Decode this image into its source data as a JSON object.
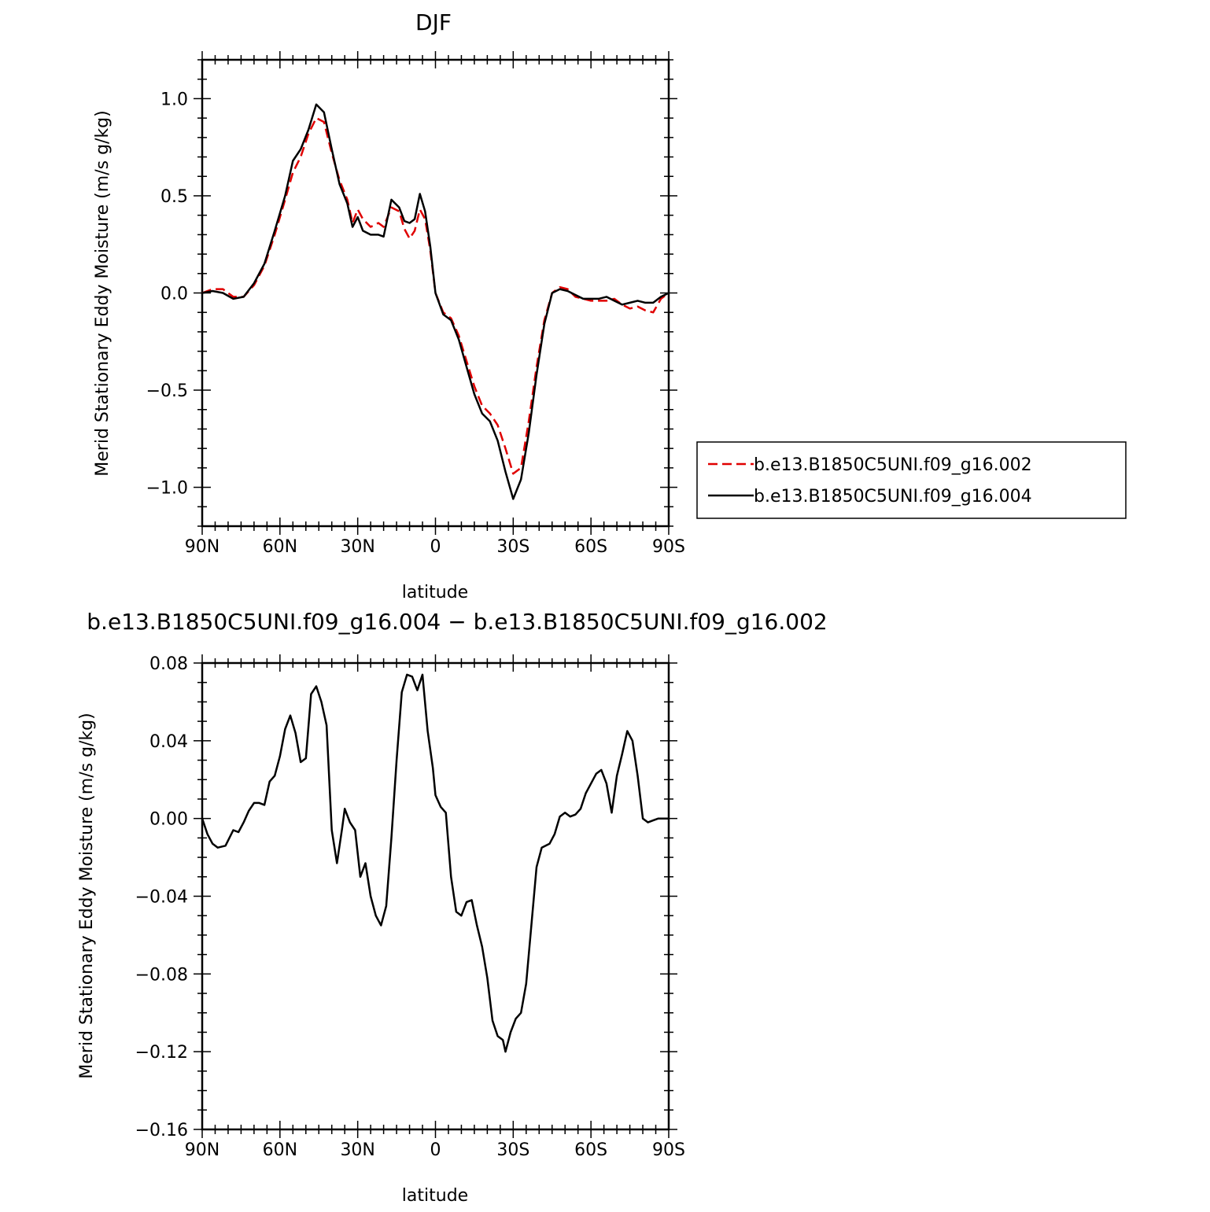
{
  "chart_data": [
    {
      "type": "line",
      "title": "DJF",
      "xlabel": "latitude",
      "ylabel": "Merid Stationary Eddy Moisture (m/s g/kg)",
      "xlim": [
        90,
        -90
      ],
      "ylim": [
        -1.2,
        1.2
      ],
      "x_ticks": [
        {
          "value": 90,
          "label": "90N"
        },
        {
          "value": 60,
          "label": "60N"
        },
        {
          "value": 30,
          "label": "30N"
        },
        {
          "value": 0,
          "label": "0"
        },
        {
          "value": -30,
          "label": "30S"
        },
        {
          "value": -60,
          "label": "60S"
        },
        {
          "value": -90,
          "label": "90S"
        }
      ],
      "y_ticks": [
        {
          "value": 1.0,
          "label": "1.0"
        },
        {
          "value": 0.5,
          "label": "0.5"
        },
        {
          "value": 0.0,
          "label": "0.0"
        },
        {
          "value": -0.5,
          "label": "−0.5"
        },
        {
          "value": -1.0,
          "label": "−1.0"
        }
      ],
      "legend_position": "right",
      "series": [
        {
          "name": "b.e13.B1850C5UNI.f09_g16.002",
          "color": "#e00000",
          "style": "dashed",
          "points": [
            [
              90,
              0.0
            ],
            [
              86,
              0.02
            ],
            [
              82,
              0.02
            ],
            [
              78,
              -0.02
            ],
            [
              74,
              -0.02
            ],
            [
              70,
              0.04
            ],
            [
              66,
              0.14
            ],
            [
              62,
              0.3
            ],
            [
              58,
              0.48
            ],
            [
              55,
              0.62
            ],
            [
              52,
              0.7
            ],
            [
              49,
              0.82
            ],
            [
              46,
              0.9
            ],
            [
              43,
              0.88
            ],
            [
              40,
              0.72
            ],
            [
              37,
              0.58
            ],
            [
              34,
              0.48
            ],
            [
              32,
              0.36
            ],
            [
              30,
              0.43
            ],
            [
              28,
              0.38
            ],
            [
              25,
              0.34
            ],
            [
              22,
              0.36
            ],
            [
              20,
              0.34
            ],
            [
              17,
              0.44
            ],
            [
              14,
              0.42
            ],
            [
              12,
              0.33
            ],
            [
              10,
              0.28
            ],
            [
              8,
              0.32
            ],
            [
              6,
              0.43
            ],
            [
              4,
              0.38
            ],
            [
              2,
              0.22
            ],
            [
              0,
              0.0
            ],
            [
              -3,
              -0.1
            ],
            [
              -6,
              -0.13
            ],
            [
              -9,
              -0.22
            ],
            [
              -12,
              -0.35
            ],
            [
              -15,
              -0.48
            ],
            [
              -18,
              -0.58
            ],
            [
              -21,
              -0.62
            ],
            [
              -24,
              -0.68
            ],
            [
              -27,
              -0.8
            ],
            [
              -30,
              -0.93
            ],
            [
              -33,
              -0.9
            ],
            [
              -36,
              -0.66
            ],
            [
              -39,
              -0.38
            ],
            [
              -42,
              -0.14
            ],
            [
              -45,
              0.0
            ],
            [
              -48,
              0.03
            ],
            [
              -51,
              0.02
            ],
            [
              -54,
              -0.02
            ],
            [
              -57,
              -0.03
            ],
            [
              -60,
              -0.04
            ],
            [
              -63,
              -0.04
            ],
            [
              -66,
              -0.04
            ],
            [
              -69,
              -0.03
            ],
            [
              -72,
              -0.06
            ],
            [
              -75,
              -0.08
            ],
            [
              -78,
              -0.07
            ],
            [
              -81,
              -0.09
            ],
            [
              -84,
              -0.1
            ],
            [
              -87,
              -0.03
            ],
            [
              -90,
              0.0
            ]
          ]
        },
        {
          "name": "b.e13.B1850C5UNI.f09_g16.004",
          "color": "#000000",
          "style": "solid",
          "points": [
            [
              90,
              0.0
            ],
            [
              86,
              0.01
            ],
            [
              82,
              0.0
            ],
            [
              78,
              -0.03
            ],
            [
              74,
              -0.02
            ],
            [
              70,
              0.05
            ],
            [
              66,
              0.15
            ],
            [
              62,
              0.32
            ],
            [
              58,
              0.5
            ],
            [
              55,
              0.68
            ],
            [
              52,
              0.74
            ],
            [
              49,
              0.84
            ],
            [
              46,
              0.97
            ],
            [
              43,
              0.93
            ],
            [
              40,
              0.74
            ],
            [
              37,
              0.56
            ],
            [
              34,
              0.46
            ],
            [
              32,
              0.34
            ],
            [
              30,
              0.39
            ],
            [
              28,
              0.32
            ],
            [
              25,
              0.3
            ],
            [
              22,
              0.3
            ],
            [
              20,
              0.29
            ],
            [
              17,
              0.48
            ],
            [
              14,
              0.44
            ],
            [
              12,
              0.37
            ],
            [
              10,
              0.36
            ],
            [
              8,
              0.38
            ],
            [
              6,
              0.51
            ],
            [
              4,
              0.42
            ],
            [
              2,
              0.24
            ],
            [
              0,
              0.0
            ],
            [
              -3,
              -0.11
            ],
            [
              -6,
              -0.14
            ],
            [
              -9,
              -0.24
            ],
            [
              -12,
              -0.38
            ],
            [
              -15,
              -0.52
            ],
            [
              -18,
              -0.62
            ],
            [
              -21,
              -0.66
            ],
            [
              -24,
              -0.76
            ],
            [
              -27,
              -0.92
            ],
            [
              -30,
              -1.06
            ],
            [
              -33,
              -0.96
            ],
            [
              -36,
              -0.72
            ],
            [
              -39,
              -0.42
            ],
            [
              -42,
              -0.16
            ],
            [
              -45,
              0.0
            ],
            [
              -48,
              0.02
            ],
            [
              -51,
              0.01
            ],
            [
              -54,
              -0.01
            ],
            [
              -57,
              -0.03
            ],
            [
              -60,
              -0.03
            ],
            [
              -63,
              -0.03
            ],
            [
              -66,
              -0.02
            ],
            [
              -69,
              -0.04
            ],
            [
              -72,
              -0.06
            ],
            [
              -75,
              -0.05
            ],
            [
              -78,
              -0.04
            ],
            [
              -81,
              -0.05
            ],
            [
              -84,
              -0.05
            ],
            [
              -87,
              -0.02
            ],
            [
              -90,
              0.0
            ]
          ]
        }
      ]
    },
    {
      "type": "line",
      "title": "b.e13.B1850C5UNI.f09_g16.004 − b.e13.B1850C5UNI.f09_g16.002",
      "xlabel": "latitude",
      "ylabel": "Merid Stationary Eddy Moisture (m/s g/kg)",
      "xlim": [
        90,
        -90
      ],
      "ylim": [
        -0.16,
        0.08
      ],
      "x_ticks": [
        {
          "value": 90,
          "label": "90N"
        },
        {
          "value": 60,
          "label": "60N"
        },
        {
          "value": 30,
          "label": "30N"
        },
        {
          "value": 0,
          "label": "0"
        },
        {
          "value": -30,
          "label": "30S"
        },
        {
          "value": -60,
          "label": "60S"
        },
        {
          "value": -90,
          "label": "90S"
        }
      ],
      "y_ticks": [
        {
          "value": 0.08,
          "label": "0.08"
        },
        {
          "value": 0.04,
          "label": "0.04"
        },
        {
          "value": 0.0,
          "label": "0.00"
        },
        {
          "value": -0.04,
          "label": "−0.04"
        },
        {
          "value": -0.08,
          "label": "−0.08"
        },
        {
          "value": -0.12,
          "label": "−0.12"
        },
        {
          "value": -0.16,
          "label": "−0.16"
        }
      ],
      "series": [
        {
          "color": "#000000",
          "style": "solid",
          "points": [
            [
              90,
              0.0
            ],
            [
              88,
              -0.008
            ],
            [
              86,
              -0.013
            ],
            [
              84,
              -0.015
            ],
            [
              81,
              -0.014
            ],
            [
              78,
              -0.006
            ],
            [
              76,
              -0.007
            ],
            [
              74,
              -0.002
            ],
            [
              72,
              0.004
            ],
            [
              70,
              0.008
            ],
            [
              68,
              0.008
            ],
            [
              66,
              0.007
            ],
            [
              64,
              0.019
            ],
            [
              62,
              0.022
            ],
            [
              60,
              0.032
            ],
            [
              58,
              0.046
            ],
            [
              56,
              0.053
            ],
            [
              54,
              0.044
            ],
            [
              52,
              0.029
            ],
            [
              50,
              0.031
            ],
            [
              48,
              0.064
            ],
            [
              46,
              0.068
            ],
            [
              44,
              0.06
            ],
            [
              42,
              0.048
            ],
            [
              40,
              -0.006
            ],
            [
              38,
              -0.023
            ],
            [
              36,
              -0.005
            ],
            [
              35,
              0.005
            ],
            [
              33,
              -0.002
            ],
            [
              31,
              -0.006
            ],
            [
              29,
              -0.03
            ],
            [
              27,
              -0.023
            ],
            [
              25,
              -0.04
            ],
            [
              23,
              -0.05
            ],
            [
              21,
              -0.055
            ],
            [
              19,
              -0.045
            ],
            [
              17,
              -0.01
            ],
            [
              15,
              0.03
            ],
            [
              13,
              0.065
            ],
            [
              11,
              0.074
            ],
            [
              9,
              0.073
            ],
            [
              7,
              0.066
            ],
            [
              5,
              0.074
            ],
            [
              3,
              0.045
            ],
            [
              1,
              0.026
            ],
            [
              0,
              0.012
            ],
            [
              -2,
              0.006
            ],
            [
              -4,
              0.003
            ],
            [
              -6,
              -0.03
            ],
            [
              -8,
              -0.048
            ],
            [
              -10,
              -0.05
            ],
            [
              -12,
              -0.043
            ],
            [
              -14,
              -0.042
            ],
            [
              -16,
              -0.055
            ],
            [
              -18,
              -0.066
            ],
            [
              -20,
              -0.082
            ],
            [
              -22,
              -0.104
            ],
            [
              -24,
              -0.112
            ],
            [
              -26,
              -0.114
            ],
            [
              -27,
              -0.12
            ],
            [
              -29,
              -0.11
            ],
            [
              -31,
              -0.103
            ],
            [
              -33,
              -0.1
            ],
            [
              -35,
              -0.085
            ],
            [
              -37,
              -0.055
            ],
            [
              -39,
              -0.025
            ],
            [
              -41,
              -0.015
            ],
            [
              -44,
              -0.013
            ],
            [
              -46,
              -0.008
            ],
            [
              -48,
              0.001
            ],
            [
              -50,
              0.003
            ],
            [
              -52,
              0.001
            ],
            [
              -54,
              0.002
            ],
            [
              -56,
              0.005
            ],
            [
              -58,
              0.013
            ],
            [
              -60,
              0.018
            ],
            [
              -62,
              0.023
            ],
            [
              -64,
              0.025
            ],
            [
              -66,
              0.018
            ],
            [
              -68,
              0.003
            ],
            [
              -70,
              0.022
            ],
            [
              -72,
              0.033
            ],
            [
              -74,
              0.045
            ],
            [
              -76,
              0.04
            ],
            [
              -78,
              0.022
            ],
            [
              -80,
              0.0
            ],
            [
              -82,
              -0.002
            ],
            [
              -84,
              -0.001
            ],
            [
              -86,
              0.0
            ],
            [
              -88,
              0.0
            ],
            [
              -90,
              0.0
            ]
          ]
        }
      ]
    }
  ]
}
